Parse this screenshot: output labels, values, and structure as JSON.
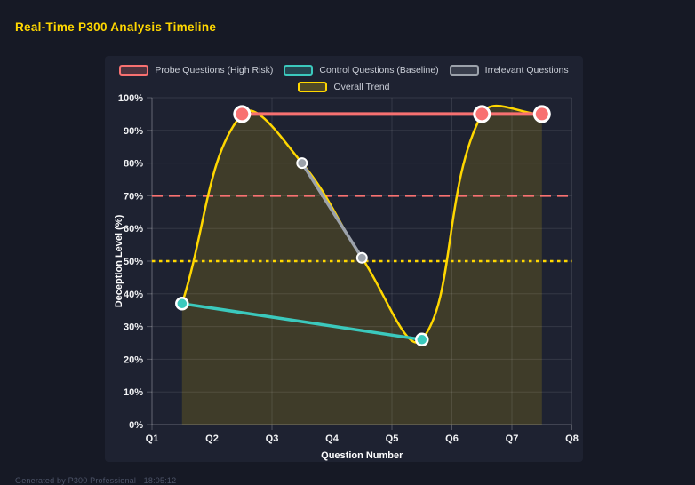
{
  "page": {
    "title": "Real-Time P300 Analysis Timeline",
    "footer": "Generated by P300 Professional - 18:05:12"
  },
  "colors": {
    "background": "#161925",
    "panel": "#1e2231",
    "title": "#ffd700",
    "grid": "rgba(255,255,255,0.10)",
    "axis_border": "rgba(255,255,255,0.24)",
    "tick_text": "#f2f3f5",
    "legend_text": "#c9cdd6",
    "footer_text": "#4d5468",
    "point_border": "#ffffff",
    "probe": "#f87171",
    "control": "#3bc9bd",
    "irrelevant": "#9ca2ab",
    "trend": "#ffd700",
    "trend_fill": "rgba(255,215,0,0.15)"
  },
  "chart_data": {
    "type": "line",
    "title": "",
    "xlabel": "Question Number",
    "ylabel": "Deception Level (%)",
    "x_ticks": [
      "Q1",
      "Q2",
      "Q3",
      "Q4",
      "Q5",
      "Q6",
      "Q7",
      "Q8"
    ],
    "x_tick_values": [
      1,
      2,
      3,
      4,
      5,
      6,
      7,
      8
    ],
    "x_range": [
      1,
      8
    ],
    "y_ticks": [
      "0%",
      "10%",
      "20%",
      "30%",
      "40%",
      "50%",
      "60%",
      "70%",
      "80%",
      "90%",
      "100%"
    ],
    "y_tick_values": [
      0,
      10,
      20,
      30,
      40,
      50,
      60,
      70,
      80,
      90,
      100
    ],
    "ylim": [
      0,
      100
    ],
    "grid": true,
    "legend_position": "top",
    "series": [
      {
        "name": "Probe Questions (High Risk)",
        "color": "#f87171",
        "x": [
          2.5,
          6.5,
          7.5
        ],
        "y": [
          95,
          95,
          95
        ],
        "smooth": false,
        "line_width": 4,
        "point_radius": 8.5,
        "point_stroke_width": 3
      },
      {
        "name": "Control Questions (Baseline)",
        "color": "#3bc9bd",
        "x": [
          1.5,
          5.5
        ],
        "y": [
          37,
          26
        ],
        "smooth": false,
        "line_width": 3.5,
        "point_radius": 6.5,
        "point_stroke_width": 2.5
      },
      {
        "name": "Irrelevant Questions",
        "color": "#9ca2ab",
        "x": [
          3.5,
          4.5
        ],
        "y": [
          80,
          51
        ],
        "smooth": false,
        "line_width": 3.5,
        "point_radius": 5.5,
        "point_stroke_width": 2
      },
      {
        "name": "Overall Trend",
        "color": "#ffd700",
        "x": [
          1.5,
          2.5,
          3.5,
          4.5,
          5.5,
          6.5,
          7.5
        ],
        "y": [
          37,
          95,
          80,
          51,
          26,
          95,
          95
        ],
        "smooth": true,
        "tension": 0.4,
        "fill_to_zero": true,
        "fill_color": "rgba(255,215,0,0.15)",
        "line_width": 2.5,
        "point_radius": 0,
        "point_stroke_width": 0
      }
    ],
    "threshold_lines": [
      {
        "value": 70,
        "color": "#f87171",
        "style": "dashed"
      },
      {
        "value": 50,
        "color": "#ffd700",
        "style": "dotted"
      }
    ]
  }
}
